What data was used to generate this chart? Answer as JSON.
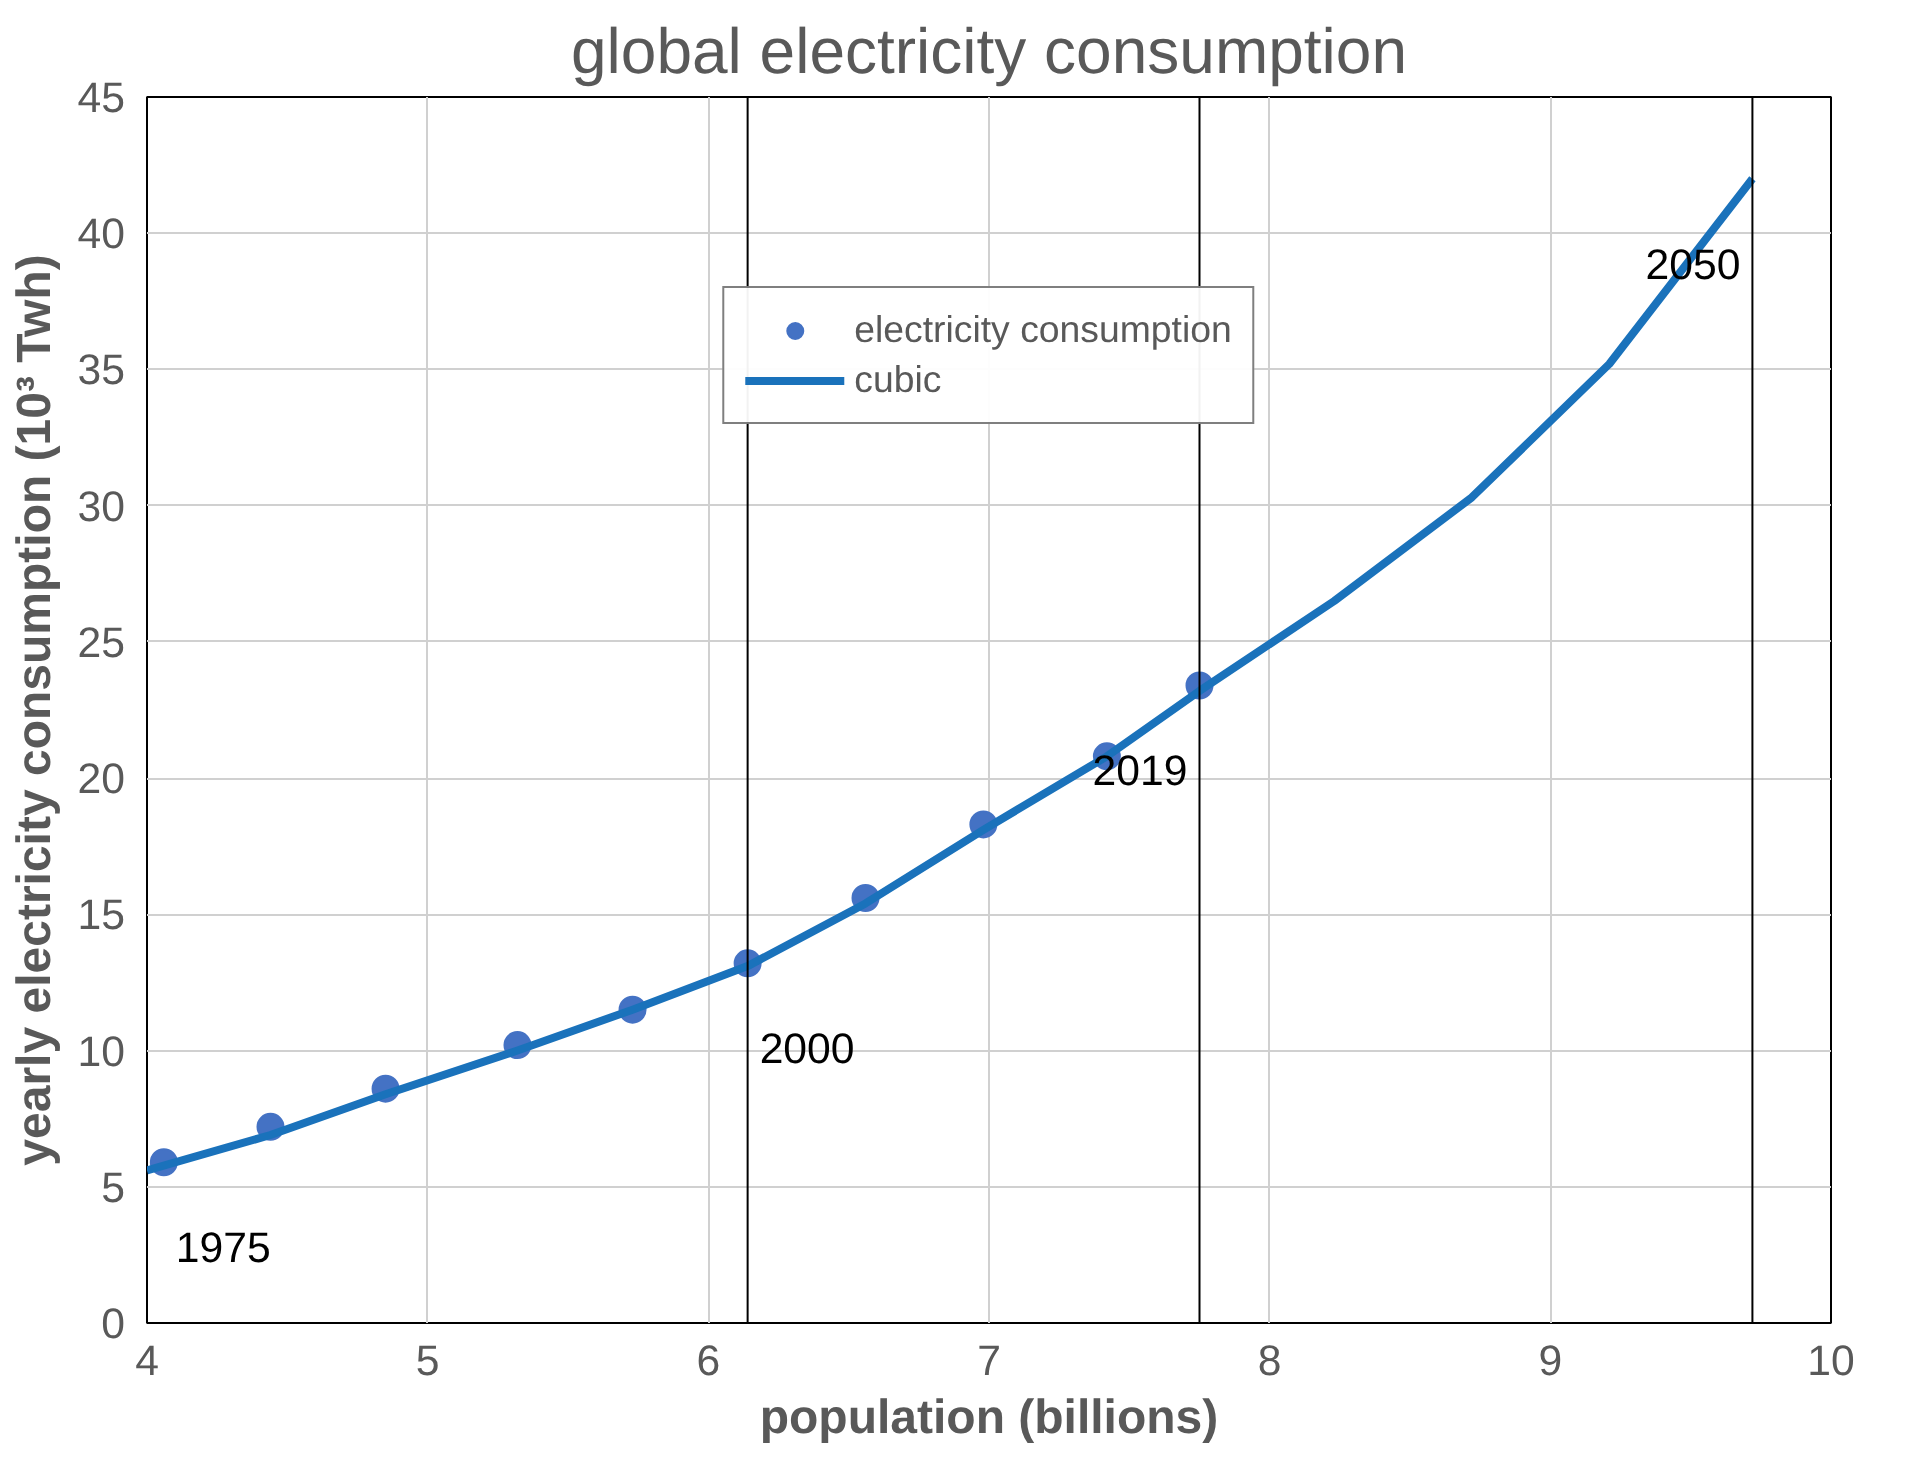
{
  "chart_data": {
    "type": "scatter",
    "title": "global electricity consumption",
    "xlabel": "population (billions)",
    "ylabel": "yearly electricity consumption (10³ Twh)",
    "xlim": [
      4,
      10
    ],
    "xticks": [
      4,
      5,
      6,
      7,
      8,
      9,
      10
    ],
    "ylim": [
      0,
      45
    ],
    "yticks": [
      0,
      5,
      10,
      15,
      20,
      25,
      30,
      35,
      40,
      45
    ],
    "grid": true,
    "legend": "top",
    "series": [
      {
        "name": "electricity consumption",
        "marker": "circle",
        "color": "#4472c4",
        "x": [
          4.06,
          4.44,
          4.85,
          5.32,
          5.73,
          6.14,
          6.56,
          6.98,
          7.42,
          7.75
        ],
        "values": [
          5.9,
          7.2,
          8.6,
          10.2,
          11.5,
          13.2,
          15.6,
          18.3,
          20.8,
          23.4
        ]
      },
      {
        "name": "cubic",
        "type": "line",
        "marker": "none",
        "line_style": "solid",
        "color": "#1a72bb",
        "x": [
          4.0,
          4.44,
          4.85,
          5.32,
          5.73,
          6.14,
          6.56,
          6.98,
          7.42,
          7.75,
          8.23,
          8.72,
          9.21,
          9.72
        ],
        "values": [
          5.6,
          6.9,
          8.4,
          10.0,
          11.5,
          13.1,
          15.4,
          18.1,
          20.8,
          23.2,
          26.5,
          30.3,
          35.2,
          42.0
        ]
      }
    ],
    "ref_lines": [
      {
        "axis": "x",
        "value": 6.14,
        "color": "#000000"
      },
      {
        "axis": "x",
        "value": 7.75,
        "color": "#000000"
      },
      {
        "axis": "x",
        "value": 9.72,
        "color": "#000000"
      }
    ],
    "annotations": [
      {
        "text": "1975",
        "x": 4.06,
        "y": 5.9
      },
      {
        "text": "2000",
        "x": 6.14,
        "y": 13.2
      },
      {
        "text": "2019",
        "x": 7.75,
        "y": 23.4
      },
      {
        "text": "2050",
        "x": 9.72,
        "y": 42.0
      }
    ]
  }
}
